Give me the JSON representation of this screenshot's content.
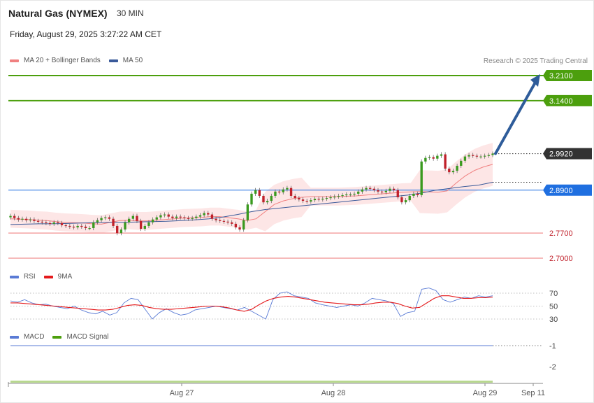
{
  "header": {
    "title": "Natural Gas (NYMEX)",
    "interval": "30 MIN",
    "datetime": "Friday, August 29, 2025 3:27:22 AM CET",
    "credit": "Research © 2025 Trading Central"
  },
  "colors": {
    "green_level": "#4c9f0d",
    "red_level": "#f4a3a3",
    "blue_level": "#1f6fe0",
    "current_price": "#333333",
    "candle_up": "#3a9a1f",
    "candle_down": "#c0212b",
    "bollinger_fill": "#fde3e3",
    "ma20": "#f08080",
    "ma50": "#3a5a9a",
    "arrow": "#2e5c9a",
    "rsi": "#5a7bd5",
    "rsi_ma": "#e41a1c",
    "macd": "#5a7bd5",
    "macd_signal": "#4c9f0d"
  },
  "chart_data": [
    {
      "type": "candlestick",
      "legend": [
        {
          "name": "MA 20 + Bollinger Bands",
          "color": "#f08080"
        },
        {
          "name": "MA 50",
          "color": "#3a5a9a"
        }
      ],
      "ylim": [
        2.66,
        3.24
      ],
      "x_ticks": [
        "Aug 27",
        "Aug 28",
        "Aug 29",
        "Sep 11"
      ],
      "levels": [
        {
          "value": 3.21,
          "label": "3.2100",
          "kind": "resistance",
          "color": "#4c9f0d"
        },
        {
          "value": 3.14,
          "label": "3.1400",
          "kind": "resistance",
          "color": "#4c9f0d"
        },
        {
          "value": 2.992,
          "label": "2.9920",
          "kind": "current",
          "color": "#333333"
        },
        {
          "value": 2.89,
          "label": "2.8900",
          "kind": "pivot",
          "color": "#1f6fe0"
        },
        {
          "value": 2.77,
          "label": "2.7700",
          "kind": "support",
          "color": "#f4a3a3"
        },
        {
          "value": 2.7,
          "label": "2.7000",
          "kind": "support",
          "color": "#f4a3a3"
        }
      ],
      "forecast_arrow": {
        "from_value": 2.992,
        "to_value": 3.21
      },
      "candle_closes": [
        2.818,
        2.812,
        2.808,
        2.81,
        2.806,
        2.808,
        2.804,
        2.802,
        2.8,
        2.798,
        2.796,
        2.8,
        2.798,
        2.792,
        2.79,
        2.788,
        2.786,
        2.79,
        2.788,
        2.784,
        2.784,
        2.8,
        2.806,
        2.812,
        2.814,
        2.81,
        2.79,
        2.77,
        2.78,
        2.8,
        2.81,
        2.818,
        2.804,
        2.782,
        2.79,
        2.8,
        2.808,
        2.814,
        2.82,
        2.822,
        2.816,
        2.812,
        2.816,
        2.814,
        2.812,
        2.81,
        2.812,
        2.816,
        2.82,
        2.826,
        2.822,
        2.81,
        2.806,
        2.804,
        2.802,
        2.8,
        2.796,
        2.786,
        2.78,
        2.806,
        2.85,
        2.88,
        2.89,
        2.874,
        2.856,
        2.86,
        2.874,
        2.886,
        2.884,
        2.892,
        2.896,
        2.874,
        2.868,
        2.864,
        2.86,
        2.858,
        2.862,
        2.866,
        2.864,
        2.866,
        2.868,
        2.87,
        2.872,
        2.874,
        2.876,
        2.878,
        2.878,
        2.88,
        2.886,
        2.892,
        2.896,
        2.894,
        2.89,
        2.886,
        2.884,
        2.888,
        2.894,
        2.89,
        2.87,
        2.856,
        2.862,
        2.874,
        2.88,
        2.876,
        2.97,
        2.98,
        2.982,
        2.978,
        2.986,
        2.99,
        2.95,
        2.94,
        2.944,
        2.958,
        2.972,
        2.984,
        2.988,
        2.986,
        2.984,
        2.984,
        2.986,
        2.988,
        2.992
      ],
      "ma20": [
        2.81,
        2.809,
        2.808,
        2.806,
        2.805,
        2.802,
        2.8,
        2.799,
        2.798,
        2.796,
        2.795,
        2.8,
        2.805,
        2.806,
        2.804,
        2.804,
        2.806,
        2.808,
        2.81,
        2.812,
        2.813,
        2.814,
        2.816,
        2.816,
        2.813,
        2.81,
        2.805,
        2.81,
        2.83,
        2.85,
        2.86,
        2.866,
        2.87,
        2.872,
        2.872,
        2.872,
        2.872,
        2.873,
        2.874,
        2.876,
        2.878,
        2.88,
        2.882,
        2.884,
        2.885,
        2.886,
        2.885,
        2.884,
        2.888,
        2.91,
        2.93,
        2.945,
        2.955,
        2.962
      ],
      "ma50": [
        2.794,
        2.795,
        2.796,
        2.796,
        2.797,
        2.798,
        2.799,
        2.8,
        2.8,
        2.801,
        2.802,
        2.803,
        2.805,
        2.807,
        2.81,
        2.815,
        2.822,
        2.83,
        2.836,
        2.84,
        2.844,
        2.848,
        2.852,
        2.856,
        2.86,
        2.864,
        2.868,
        2.872,
        2.876,
        2.882,
        2.89,
        2.895,
        2.9,
        2.904,
        2.912
      ]
    },
    {
      "type": "line",
      "legend": [
        {
          "name": "RSI",
          "color": "#5a7bd5"
        },
        {
          "name": "9MA",
          "color": "#e41a1c"
        }
      ],
      "ylim": [
        20,
        80
      ],
      "y_ticks": [
        70,
        50,
        30
      ],
      "series": [
        {
          "name": "RSI",
          "values": [
            58,
            56,
            60,
            55,
            52,
            53,
            50,
            48,
            46,
            50,
            44,
            40,
            38,
            42,
            36,
            40,
            55,
            62,
            60,
            45,
            30,
            40,
            46,
            40,
            36,
            38,
            44,
            46,
            48,
            50,
            48,
            46,
            44,
            48,
            42,
            36,
            30,
            60,
            70,
            72,
            66,
            64,
            62,
            55,
            52,
            50,
            48,
            50,
            52,
            50,
            55,
            62,
            60,
            58,
            54,
            34,
            40,
            42,
            76,
            78,
            74,
            60,
            56,
            60,
            64,
            62,
            66,
            64,
            66
          ]
        },
        {
          "name": "9MA",
          "values": [
            55,
            55,
            54,
            53,
            52,
            51,
            50,
            49,
            48,
            47,
            46,
            45,
            44,
            44,
            45,
            48,
            51,
            52,
            51,
            48,
            46,
            45,
            45,
            46,
            47,
            48,
            49,
            50,
            50,
            49,
            47,
            44,
            42,
            45,
            52,
            58,
            62,
            64,
            65,
            64,
            62,
            60,
            58,
            56,
            55,
            54,
            53,
            52,
            52,
            53,
            55,
            56,
            56,
            54,
            50,
            47,
            48,
            55,
            62,
            66,
            66,
            64,
            62,
            62,
            63,
            63,
            64
          ]
        }
      ]
    },
    {
      "type": "line",
      "legend": [
        {
          "name": "MACD",
          "color": "#5a7bd5"
        },
        {
          "name": "MACD Signal",
          "color": "#4c9f0d"
        }
      ],
      "y_ticks": [
        -1,
        -2
      ],
      "ylim": [
        -3.1,
        0.2
      ]
    }
  ]
}
